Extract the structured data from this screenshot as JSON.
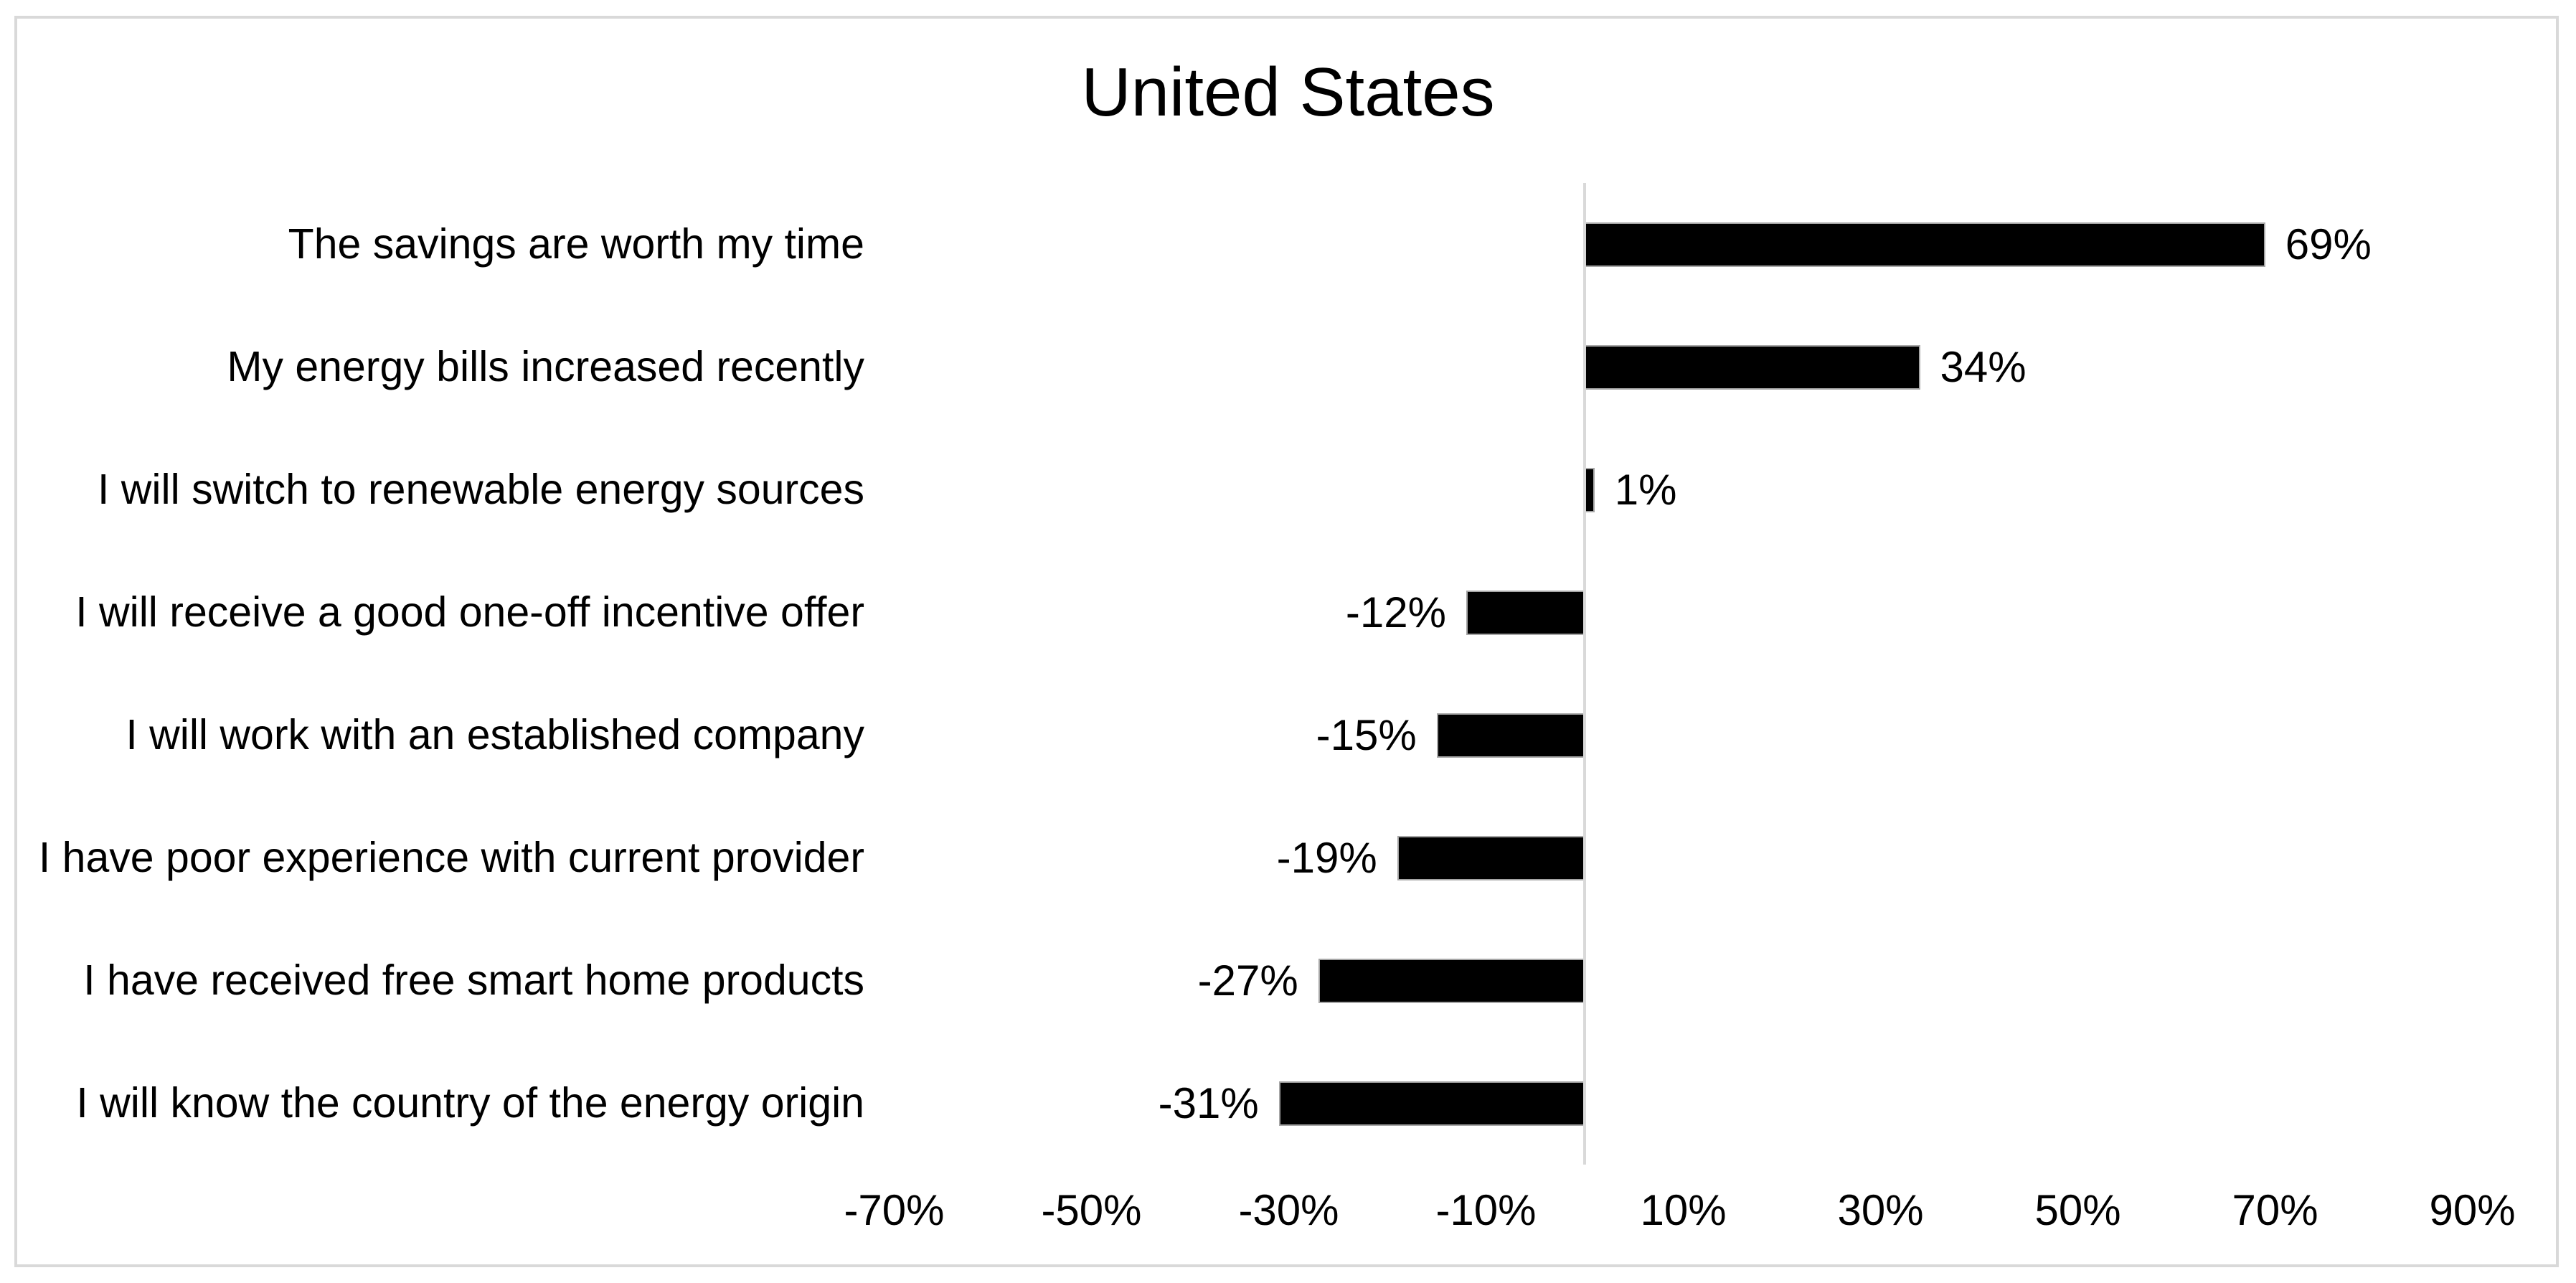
{
  "chart_data": {
    "type": "bar",
    "orientation": "horizontal",
    "title": "United States",
    "categories": [
      "The savings are worth my time",
      "My energy bills increased recently",
      "I will switch to renewable energy sources",
      "I will receive a good one-off incentive offer",
      "I will work with an established company",
      "I have poor experience with current provider",
      "I have received free smart home products",
      "I will know the country of the energy origin"
    ],
    "values": [
      69,
      34,
      1,
      -12,
      -15,
      -19,
      -27,
      -31
    ],
    "value_labels": [
      "69%",
      "34%",
      "1%",
      "-12%",
      "-15%",
      "-19%",
      "-27%",
      "-31%"
    ],
    "x_ticks": [
      {
        "label": "-70%",
        "value": -70
      },
      {
        "label": "-50%",
        "value": -50
      },
      {
        "label": "-30%",
        "value": -30
      },
      {
        "label": "-10%",
        "value": -10
      },
      {
        "label": "10%",
        "value": 10
      },
      {
        "label": "30%",
        "value": 30
      },
      {
        "label": "50%",
        "value": 50
      },
      {
        "label": "70%",
        "value": 70
      },
      {
        "label": "90%",
        "value": 90
      }
    ],
    "xlim": [
      -77,
      94
    ],
    "xlabel": "",
    "ylabel": "",
    "grid": false,
    "legend": false,
    "bar_color": "#000000",
    "bar_edge_color": "#a6a6a6",
    "axis_color": "#d9d9d9",
    "text_color": "#000000"
  }
}
